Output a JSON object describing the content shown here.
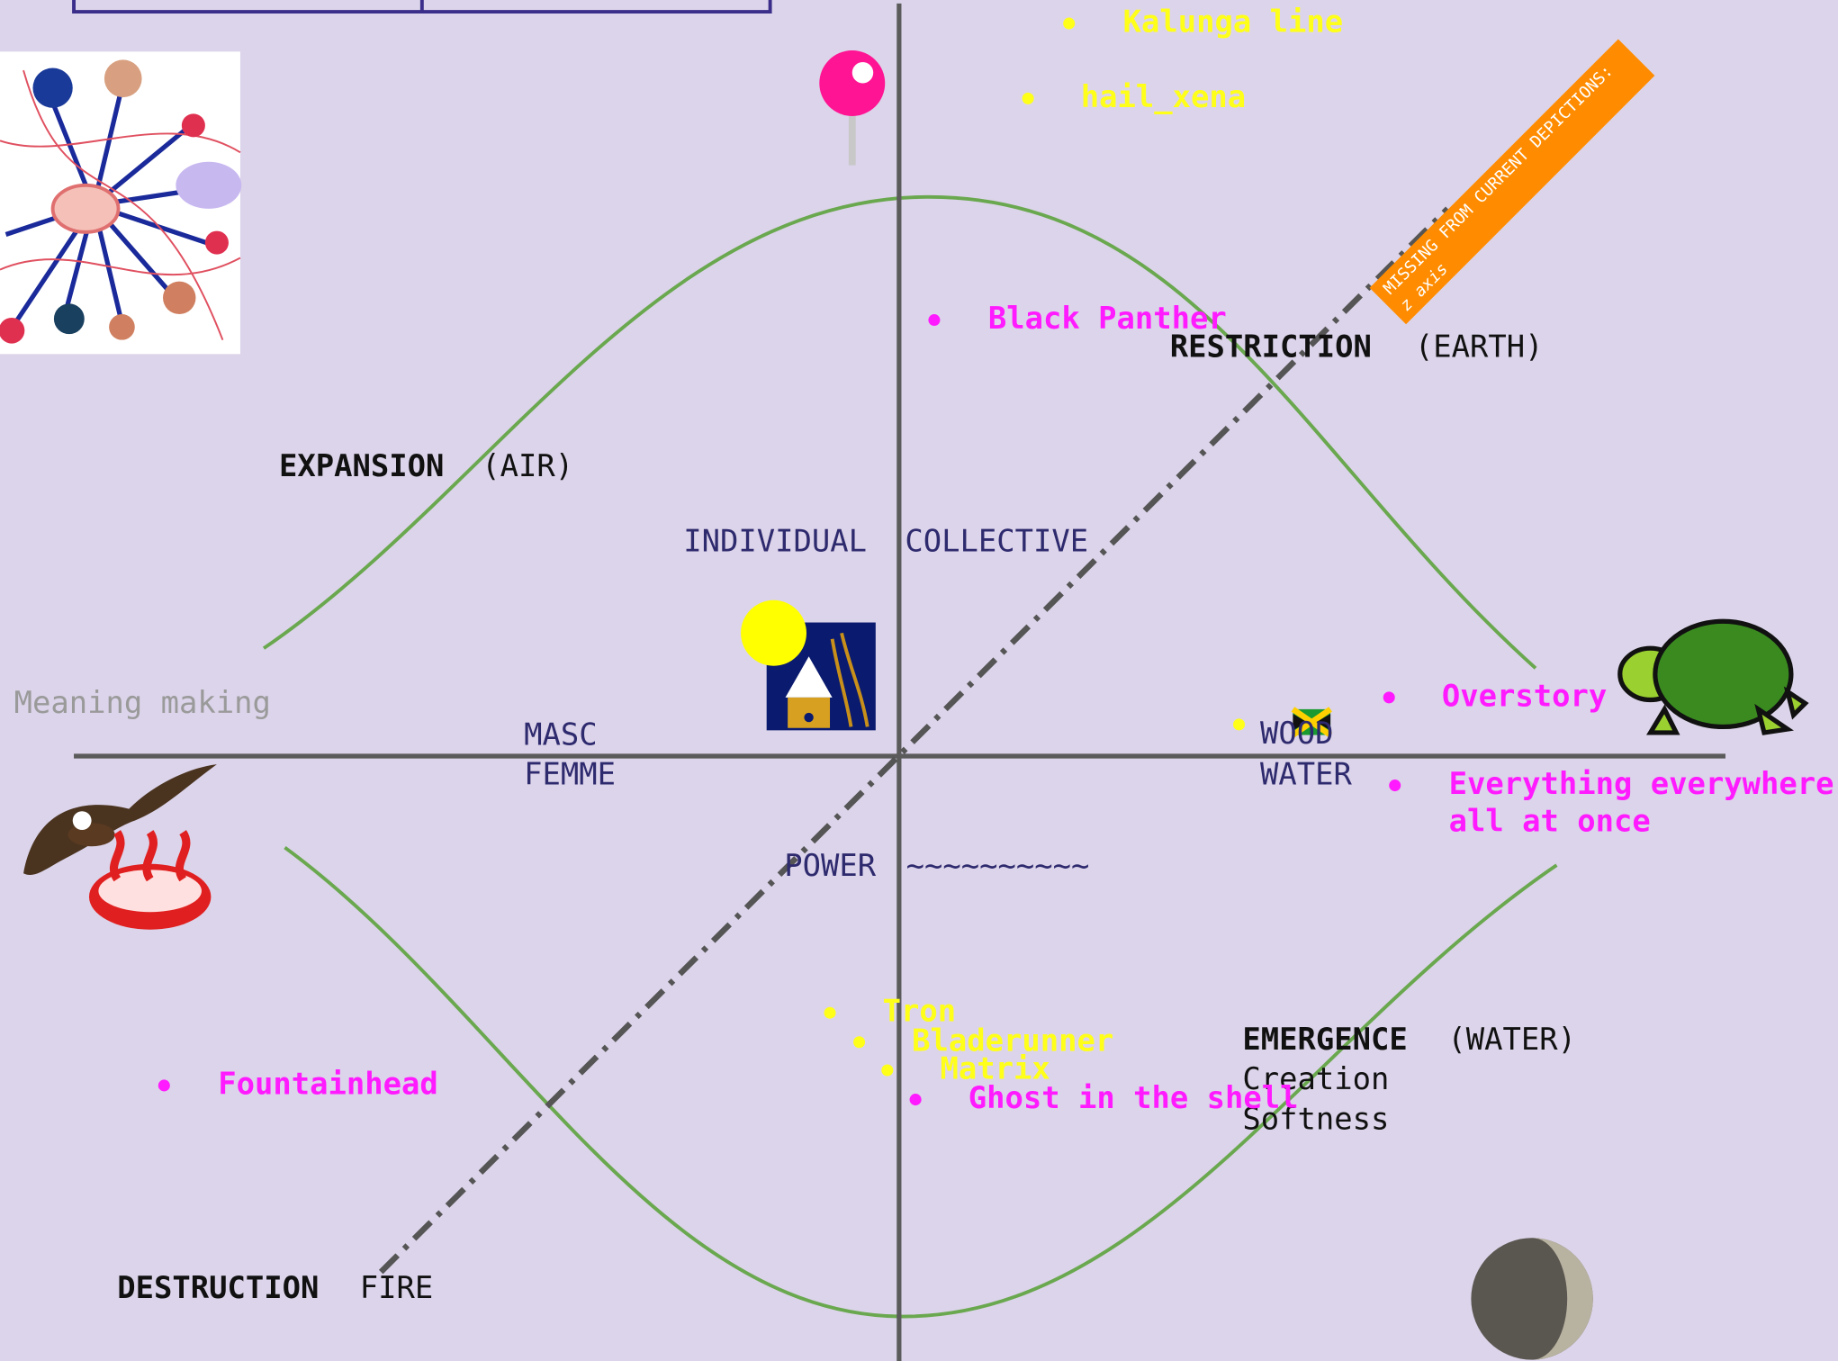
{
  "top_items": [
    "Kalunga line",
    "hail_xena"
  ],
  "quadrants": {
    "restriction": {
      "title": "RESTRICTION",
      "element": "(EARTH)"
    },
    "expansion": {
      "title": "EXPANSION",
      "element": "(AIR)"
    },
    "emergence": {
      "title": "EMERGENCE",
      "element": "(WATER)",
      "lines": [
        "Creation",
        "Softness"
      ]
    },
    "destruction": {
      "title": "DESTRUCTION",
      "element": "FIRE"
    }
  },
  "axes": {
    "individual": "INDIVIDUAL",
    "collective": "COLLECTIVE",
    "masc": "MASC",
    "femme": "FEMME",
    "wood": "WOOD",
    "water": "WATER",
    "power": "POWER",
    "power_wave": "~~~~~~~~~~"
  },
  "side_label": "Meaning making",
  "media": {
    "black_panther": "Black Panther",
    "overstory": "Overstory",
    "everything": [
      "Everything everywhere",
      "all at once"
    ],
    "tron": "Tron",
    "bladerunner": "Bladerunner",
    "matrix": "Matrix",
    "ghost": "Ghost in the shell",
    "fountainhead": "Fountainhead"
  },
  "banner": [
    "MISSING FROM CURRENT DEPICTIONS:",
    "z axis"
  ]
}
